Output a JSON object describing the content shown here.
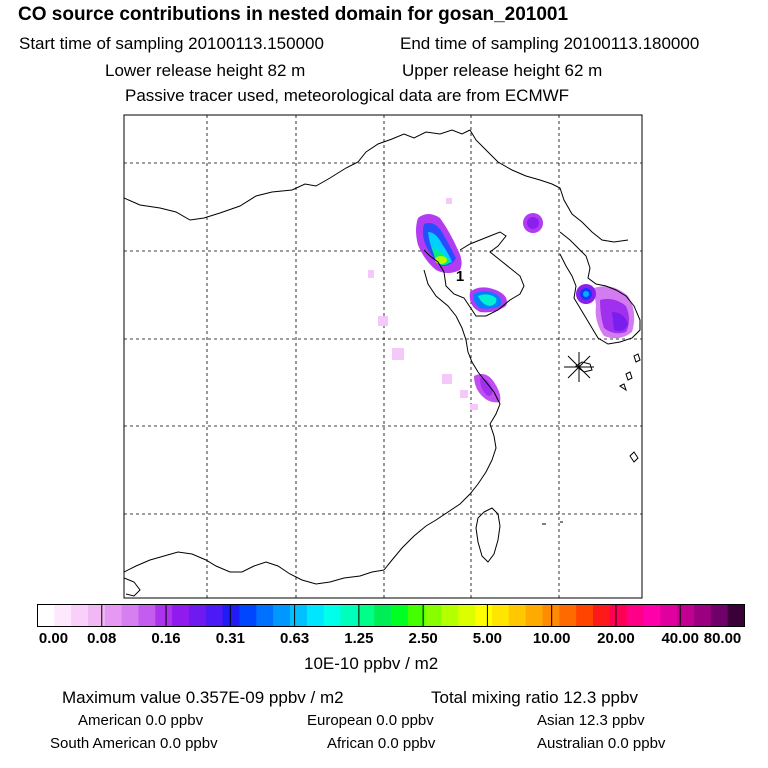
{
  "header": {
    "title": "CO  source contributions in nested domain for gosan_201001",
    "start_time": "Start time of sampling 20100113.150000",
    "end_time": "End time of sampling 20100113.180000",
    "lower_height": "Lower release height   82 m",
    "upper_height": "Upper release height   62 m",
    "tracer_note": "Passive tracer used, meteorological data are from ECMWF"
  },
  "chart_data": {
    "type": "heatmap",
    "title": "CO  source contributions in nested domain for gosan_201001",
    "map_label": "1",
    "colorbar": {
      "unit": "10E-10 ppbv / m2",
      "tick_labels": [
        "0.00",
        "0.08",
        "0.16",
        "0.31",
        "0.63",
        "1.25",
        "2.50",
        "5.00",
        "10.00",
        "20.00",
        "40.00",
        "80.00"
      ],
      "colors": [
        "#ffffff",
        "#fde8fd",
        "#f8d0fa",
        "#f2b8f6",
        "#e699f2",
        "#d67ff0",
        "#c45cf0",
        "#ac33ee",
        "#8f1bee",
        "#6f1af0",
        "#4b1af4",
        "#1f1cf5",
        "#0046ff",
        "#0070ff",
        "#0098ff",
        "#00c0ff",
        "#00e6ff",
        "#00ffea",
        "#00ffbb",
        "#00ff88",
        "#00ee55",
        "#00ff22",
        "#44ff00",
        "#88ff00",
        "#b4ff00",
        "#dcff00",
        "#ffff00",
        "#ffe600",
        "#ffc800",
        "#ffaa00",
        "#ff8c00",
        "#ff6a00",
        "#ff4400",
        "#ff1a1a",
        "#ff0055",
        "#ff0088",
        "#ff00aa",
        "#e000a0",
        "#c00090",
        "#9a0080",
        "#70006a",
        "#3c0038"
      ]
    },
    "max_value": {
      "value": 3.57e-10,
      "unit": "ppbv / m2"
    },
    "total_mixing_ratio": {
      "value": 12.3,
      "unit": "ppbv"
    },
    "regions": [
      {
        "name": "American",
        "value": 0.0,
        "unit": "ppbv"
      },
      {
        "name": "European",
        "value": 0.0,
        "unit": "ppbv"
      },
      {
        "name": "Asian",
        "value": 12.3,
        "unit": "ppbv"
      },
      {
        "name": "South American",
        "value": 0.0,
        "unit": "ppbv"
      },
      {
        "name": "African",
        "value": 0.0,
        "unit": "ppbv"
      },
      {
        "name": "Australian",
        "value": 0.0,
        "unit": "ppbv"
      }
    ]
  },
  "stats": {
    "max_value_text": "Maximum value  0.357E-09 ppbv / m2",
    "total_text": "Total mixing ratio       12.3 ppbv",
    "american": "American        0.0 ppbv",
    "european": "European        0.0 ppbv",
    "asian": "Asian       12.3 ppbv",
    "south_american": "South American        0.0 ppbv",
    "african": "African        0.0 ppbv",
    "australian": "Australian        0.0 ppbv"
  },
  "colors": {
    "coast": "#000000",
    "grid": "#000000"
  }
}
